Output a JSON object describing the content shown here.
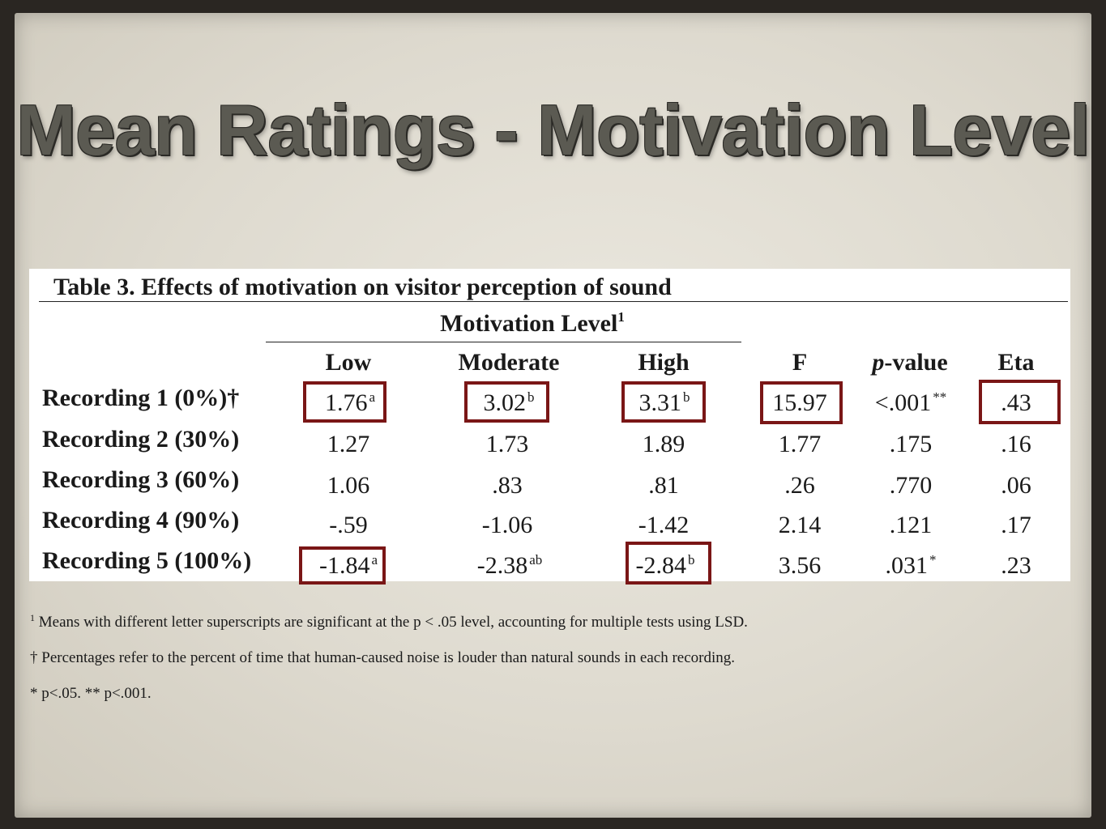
{
  "slide": {
    "title": "Mean Ratings - Motivation Level"
  },
  "table": {
    "title": "Table 3. Effects of motivation on visitor perception of sound",
    "group_header": "Motivation Level",
    "group_header_sup": "1",
    "col_headers": {
      "low": "Low",
      "moderate": "Moderate",
      "high": "High",
      "f": "F",
      "p_italic": "p",
      "p_rest": "-value",
      "eta": "Eta"
    },
    "rows": [
      {
        "label": "Recording 1 (0%)†",
        "low": "1.76",
        "low_sup": "a",
        "moderate": "3.02",
        "moderate_sup": "b",
        "high": "3.31",
        "high_sup": "b",
        "f": "15.97",
        "p": "<.001",
        "p_sup": "**",
        "eta": ".43"
      },
      {
        "label": "Recording 2 (30%)",
        "low": "1.27",
        "low_sup": "",
        "moderate": "1.73",
        "moderate_sup": "",
        "high": "1.89",
        "high_sup": "",
        "f": "1.77",
        "p": ".175",
        "p_sup": "",
        "eta": ".16"
      },
      {
        "label": "Recording 3 (60%)",
        "low": "1.06",
        "low_sup": "",
        "moderate": ".83",
        "moderate_sup": "",
        "high": ".81",
        "high_sup": "",
        "f": ".26",
        "p": ".770",
        "p_sup": "",
        "eta": ".06"
      },
      {
        "label": "Recording 4 (90%)",
        "low": "-.59",
        "low_sup": "",
        "moderate": "-1.06",
        "moderate_sup": "",
        "high": "-1.42",
        "high_sup": "",
        "f": "2.14",
        "p": ".121",
        "p_sup": "",
        "eta": ".17"
      },
      {
        "label": "Recording 5 (100%)",
        "low": "-1.84",
        "low_sup": "a",
        "moderate": "-2.38",
        "moderate_sup": "ab",
        "high": "-2.84",
        "high_sup": "b",
        "f": "3.56",
        "p": ".031",
        "p_sup": "*",
        "eta": ".23"
      }
    ],
    "highlight_color": "#7a1616"
  },
  "notes": {
    "note1_sup": "1",
    "note1": "Means with different letter superscripts are significant at the p < .05 level, accounting for multiple tests using LSD.",
    "note2_symbol": "†",
    "note2": "Percentages refer to the percent of time that human-caused noise is louder than natural sounds in each recording.",
    "note3": "* p<.05. ** p<.001."
  }
}
